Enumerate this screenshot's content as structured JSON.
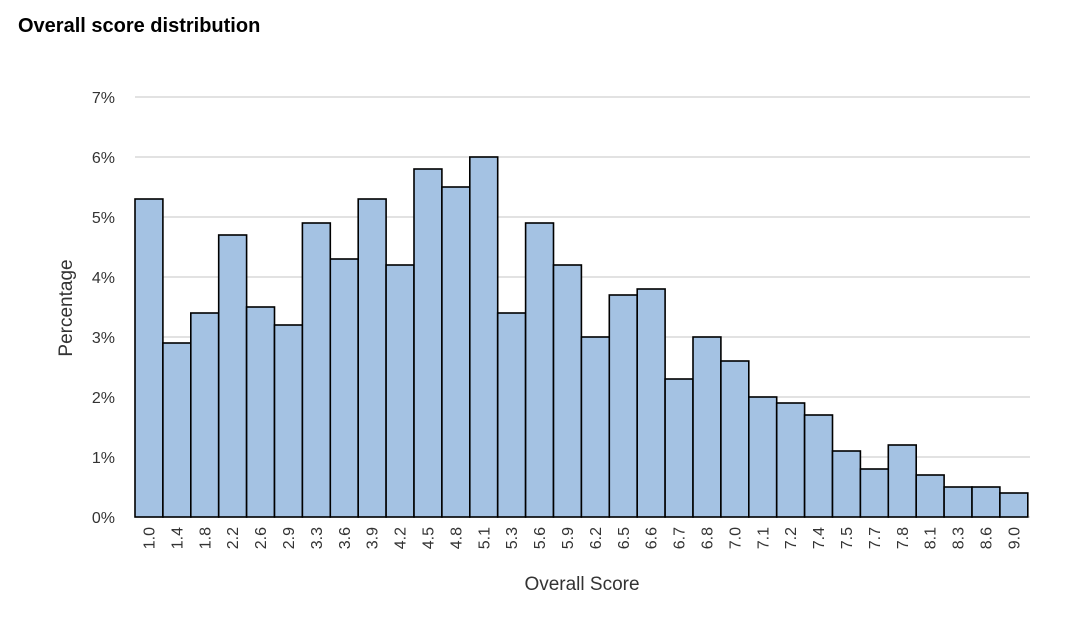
{
  "colors": {
    "bar_fill": "#a4c2e3",
    "bar_stroke": "#000000",
    "grid": "#d9d9d9",
    "text": "#333333"
  },
  "chart_data": {
    "type": "bar",
    "title": "Overall score distribution",
    "xlabel": "Overall Score",
    "ylabel": "Percentage",
    "ylim": [
      0,
      7
    ],
    "y_ticks": [
      "0%",
      "1%",
      "2%",
      "3%",
      "4%",
      "5%",
      "6%",
      "7%"
    ],
    "grid": true,
    "categories": [
      "1.0",
      "1.4",
      "1.8",
      "2.2",
      "2.6",
      "2.9",
      "3.3",
      "3.6",
      "3.9",
      "4.2",
      "4.5",
      "4.8",
      "5.1",
      "5.3",
      "5.6",
      "5.9",
      "6.2",
      "6.5",
      "6.6",
      "6.7",
      "6.8",
      "7.0",
      "7.1",
      "7.2",
      "7.4",
      "7.5",
      "7.7",
      "7.8",
      "8.1",
      "8.3",
      "8.6",
      "9.0"
    ],
    "values": [
      5.3,
      2.9,
      3.4,
      4.7,
      3.5,
      3.2,
      4.9,
      4.3,
      5.3,
      4.2,
      5.8,
      5.5,
      6.0,
      3.4,
      4.9,
      4.2,
      3.0,
      3.7,
      3.8,
      2.3,
      3.0,
      2.6,
      2.0,
      1.9,
      1.7,
      1.1,
      0.8,
      1.2,
      0.7,
      0.5,
      0.5,
      0.4
    ]
  }
}
